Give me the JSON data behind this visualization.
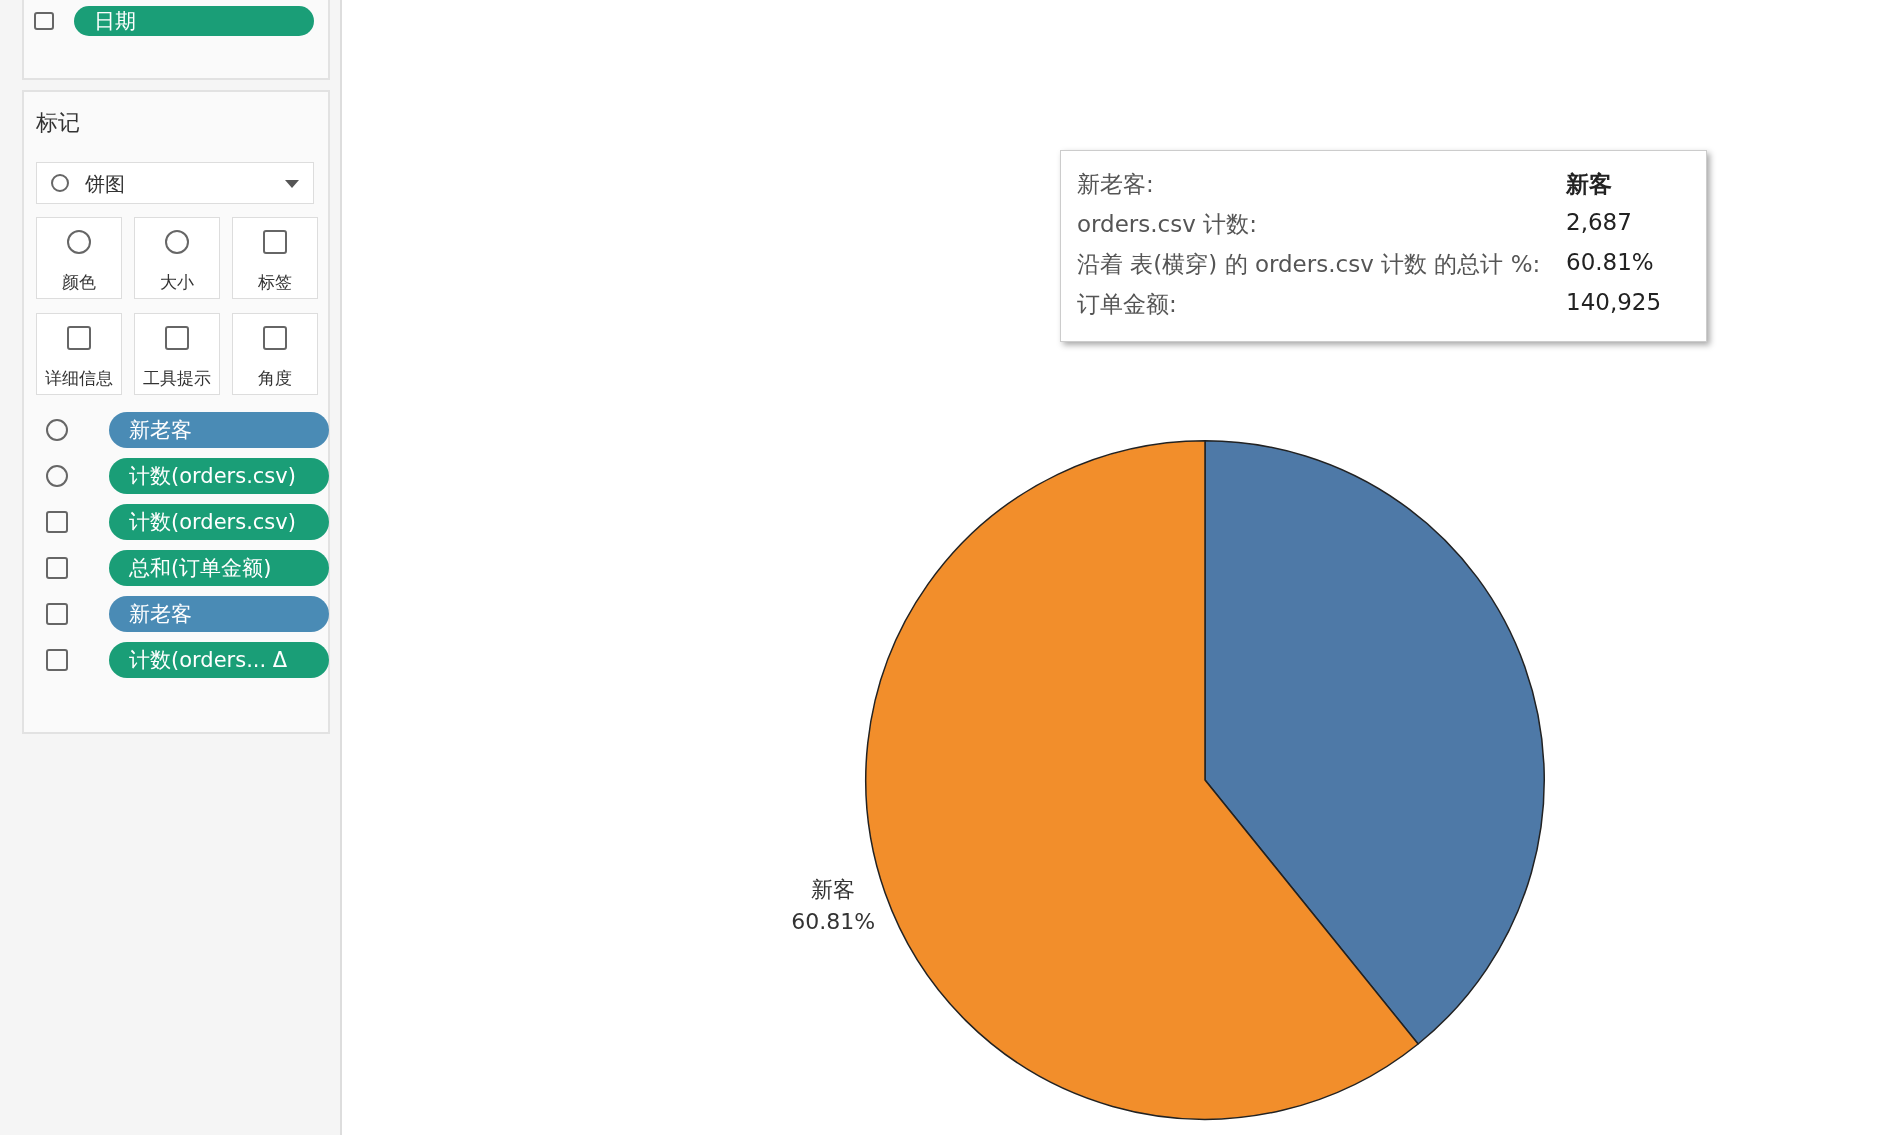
{
  "chart_data": {
    "type": "pie",
    "categories": [
      null,
      "新客"
    ],
    "values": [
      39.19,
      60.81
    ],
    "colors": [
      "#4e79a7",
      "#f28e2b"
    ],
    "value_labels": [
      null,
      "60.81%"
    ],
    "legend": false,
    "annotations": [
      "日期",
      "标记",
      "饼图",
      "颜色",
      "大小",
      "标签",
      "详细信息",
      "工具提示",
      "角度",
      "新老客",
      "计数(orders.csv)",
      "计数(orders.csv)",
      "总和(订单金额)",
      "新老客",
      "计数(orders... Δ",
      "新老客:",
      "新客",
      "orders.csv 计数:",
      "2,687",
      "沿着 表(横穿) 的 orders.csv 计数 的总计 %:",
      "60.81%",
      "订单金额:",
      "140,925"
    ]
  }
}
